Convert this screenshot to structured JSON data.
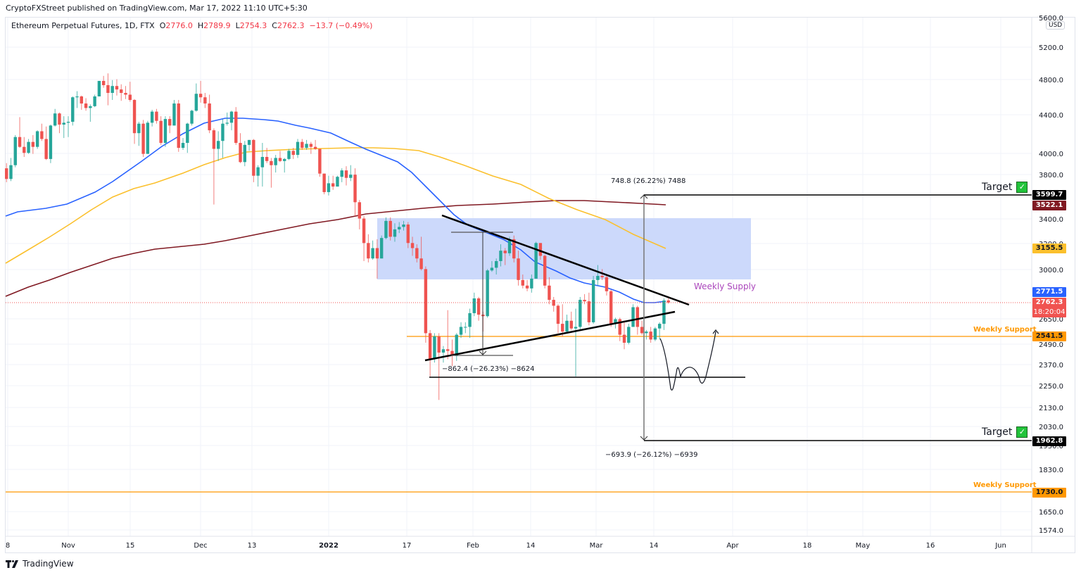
{
  "header": {
    "publisher_line": "CryptoFXStreet published on TradingView.com, Mar 17, 2022 11:10 UTC+5:30"
  },
  "legend": {
    "symbol": "Ethereum Perpetual Futures, 1D, FTX",
    "open_label": "O",
    "open": "2776.0",
    "high_label": "H",
    "high": "2789.9",
    "low_label": "L",
    "low": "2754.3",
    "close_label": "C",
    "close": "2762.3",
    "change": "−13.7 (−0.49%)"
  },
  "price_axis": {
    "currency": "USD",
    "ticks": [
      "5600.0",
      "5200.0",
      "4800.0",
      "4400.0",
      "4000.0",
      "3800.0",
      "3400.0",
      "3200.0",
      "3000.0",
      "2650.0",
      "2490.0",
      "2370.0",
      "2250.0",
      "2130.0",
      "2030.0",
      "1930.0",
      "1830.0",
      "1650.0",
      "1574.0"
    ]
  },
  "time_axis": {
    "ticks": [
      "8",
      "Nov",
      "15",
      "Dec",
      "13",
      "2022",
      "17",
      "Feb",
      "14",
      "Mar",
      "14",
      "Apr",
      "18",
      "May",
      "16",
      "Jun"
    ]
  },
  "price_tags": [
    {
      "value": "3599.7",
      "bg": "#000000",
      "color": "#ffffff"
    },
    {
      "value": "3522.1",
      "bg": "#801922",
      "color": "#ffffff"
    },
    {
      "value": "3155.5",
      "bg": "#fbc02d",
      "color": "#131722"
    },
    {
      "value": "2771.5",
      "bg": "#2962ff",
      "color": "#ffffff"
    },
    {
      "value": "2762.3",
      "bg": "#f05350",
      "color": "#ffffff",
      "sub": "18:20:04"
    },
    {
      "value": "2541.5",
      "bg": "#ff9800",
      "color": "#131722"
    },
    {
      "value": "1962.8",
      "bg": "#000000",
      "color": "#ffffff"
    },
    {
      "value": "1730.0",
      "bg": "#ff9800",
      "color": "#131722"
    }
  ],
  "annotations": {
    "measure_up": "748.8 (26.22%) 7488",
    "measure_down": "−693.9 (−26.12%) −6939",
    "measure_flag": "−862.4 (−26.23%) −8624",
    "target_upper": "Target",
    "target_lower": "Target",
    "weekly_supply": "Weekly Supply",
    "weekly_support_1": "Weekly Support",
    "weekly_support_2": "Weekly Support"
  },
  "footer": {
    "brand": "TradingView"
  },
  "colors": {
    "up": "#26a69a",
    "down": "#ef5350",
    "ma50": "#2962ff",
    "ma100": "#fbc02d",
    "ma200": "#801922",
    "supply": "#c9d7fb",
    "support": "#ff9800"
  },
  "chart_data": {
    "type": "candlestick",
    "title": "Ethereum Perpetual Futures, 1D, FTX",
    "xlabel": "",
    "ylabel": "USD",
    "y_scale": "log",
    "ylim": [
      1574,
      5600
    ],
    "x_range": [
      "2021-10-08",
      "2022-06-10"
    ],
    "last_close": 2762.3,
    "series": [
      {
        "name": "MA50 (blue)",
        "last": 2771.5
      },
      {
        "name": "MA100 (yellow)",
        "last": 3155.5
      },
      {
        "name": "MA200 (dark red)",
        "last": 3522.1
      }
    ],
    "levels": [
      {
        "name": "Target upper",
        "value": 3599.7
      },
      {
        "name": "Weekly Supply zone",
        "from": 2930,
        "to": 3380
      },
      {
        "name": "Weekly Support",
        "value": 2541.5
      },
      {
        "name": "Range low",
        "value": 2300
      },
      {
        "name": "Target lower",
        "value": 1962.8
      },
      {
        "name": "Weekly Support",
        "value": 1730.0
      }
    ],
    "ohlc": [
      [
        "10-08",
        3600,
        3660,
        3540,
        3560
      ],
      [
        "10-09",
        3560,
        3620,
        3530,
        3580
      ],
      [
        "10-10",
        3580,
        3620,
        3420,
        3430
      ],
      [
        "10-11",
        3430,
        3560,
        3400,
        3540
      ],
      [
        "10-12",
        3540,
        3560,
        3450,
        3490
      ],
      [
        "10-13",
        3490,
        3620,
        3460,
        3610
      ],
      [
        "10-14",
        3610,
        3880,
        3590,
        3860
      ],
      [
        "10-15",
        3860,
        3900,
        3770,
        3870
      ],
      [
        "10-16",
        3870,
        3940,
        3820,
        3830
      ],
      [
        "10-17",
        3830,
        3900,
        3740,
        3850
      ],
      [
        "10-18",
        3850,
        3900,
        3720,
        3750
      ],
      [
        "10-19",
        3750,
        3950,
        3730,
        3880
      ],
      [
        "10-20",
        3880,
        4180,
        3860,
        4160
      ],
      [
        "10-21",
        4160,
        4370,
        4050,
        4060
      ],
      [
        "10-22",
        4060,
        4160,
        3960,
        4000
      ],
      [
        "10-23",
        4000,
        4140,
        3990,
        4110
      ],
      [
        "10-24",
        4110,
        4180,
        3990,
        4060
      ],
      [
        "10-25",
        4060,
        4230,
        4040,
        4220
      ],
      [
        "10-26",
        4220,
        4300,
        4120,
        4140
      ],
      [
        "10-27",
        4140,
        4270,
        3930,
        3940
      ],
      [
        "10-28",
        3940,
        4290,
        3900,
        4280
      ],
      [
        "10-29",
        4280,
        4460,
        4270,
        4410
      ],
      [
        "10-30",
        4410,
        4420,
        4200,
        4290
      ],
      [
        "10-31",
        4290,
        4380,
        4150,
        4310
      ],
      [
        "11-01",
        4310,
        4380,
        4160,
        4320
      ],
      [
        "11-02",
        4320,
        4600,
        4280,
        4590
      ],
      [
        "11-03",
        4590,
        4660,
        4470,
        4600
      ],
      [
        "11-04",
        4600,
        4610,
        4450,
        4520
      ],
      [
        "11-05",
        4520,
        4580,
        4440,
        4470
      ],
      [
        "11-06",
        4470,
        4510,
        4320,
        4490
      ],
      [
        "11-07",
        4490,
        4620,
        4480,
        4600
      ],
      [
        "11-08",
        4600,
        4780,
        4600,
        4780
      ],
      [
        "11-09",
        4780,
        4840,
        4700,
        4730
      ],
      [
        "11-10",
        4730,
        4870,
        4500,
        4640
      ],
      [
        "11-11",
        4640,
        4790,
        4560,
        4720
      ],
      [
        "11-12",
        4720,
        4800,
        4610,
        4680
      ],
      [
        "11-13",
        4680,
        4740,
        4550,
        4640
      ],
      [
        "11-14",
        4640,
        4720,
        4570,
        4620
      ],
      [
        "11-15",
        4620,
        4770,
        4540,
        4560
      ],
      [
        "11-16",
        4560,
        4570,
        4090,
        4200
      ],
      [
        "11-17",
        4200,
        4320,
        4070,
        4300
      ],
      [
        "11-18",
        4300,
        4340,
        3960,
        3990
      ],
      [
        "11-19",
        3990,
        4330,
        3990,
        4310
      ],
      [
        "11-20",
        4310,
        4450,
        4270,
        4430
      ],
      [
        "11-21",
        4430,
        4460,
        4300,
        4330
      ],
      [
        "11-22",
        4330,
        4380,
        4080,
        4100
      ],
      [
        "11-23",
        4100,
        4380,
        4060,
        4350
      ],
      [
        "11-24",
        4350,
        4380,
        4200,
        4280
      ],
      [
        "11-25",
        4280,
        4560,
        4280,
        4520
      ],
      [
        "11-26",
        4520,
        4560,
        4010,
        4050
      ],
      [
        "11-27",
        4050,
        4150,
        4030,
        4100
      ],
      [
        "11-28",
        4100,
        4310,
        4000,
        4300
      ],
      [
        "11-29",
        4300,
        4450,
        4280,
        4440
      ],
      [
        "11-30",
        4440,
        4750,
        4430,
        4630
      ],
      [
        "12-01",
        4630,
        4780,
        4530,
        4590
      ],
      [
        "12-02",
        4590,
        4640,
        4470,
        4520
      ],
      [
        "12-03",
        4520,
        4620,
        4200,
        4230
      ],
      [
        "12-04",
        4230,
        4250,
        3520,
        4040
      ],
      [
        "12-05",
        4040,
        4220,
        3920,
        4120
      ],
      [
        "12-06",
        4120,
        4350,
        3950,
        4300
      ],
      [
        "12-07",
        4300,
        4420,
        4280,
        4310
      ],
      [
        "12-08",
        4310,
        4440,
        4230,
        4430
      ],
      [
        "12-09",
        4430,
        4480,
        4080,
        4100
      ],
      [
        "12-10",
        4100,
        4200,
        3900,
        3910
      ],
      [
        "12-11",
        3910,
        4120,
        3870,
        4080
      ],
      [
        "12-12",
        4080,
        4130,
        4020,
        4130
      ],
      [
        "12-13",
        4130,
        4140,
        3720,
        3780
      ],
      [
        "12-14",
        3780,
        3880,
        3680,
        3860
      ],
      [
        "12-15",
        3860,
        4100,
        3680,
        3960
      ],
      [
        "12-16",
        3960,
        4050,
        3900,
        3920
      ],
      [
        "12-17",
        3920,
        3950,
        3670,
        3880
      ],
      [
        "12-18",
        3880,
        3980,
        3810,
        3950
      ],
      [
        "12-19",
        3950,
        4020,
        3910,
        3920
      ],
      [
        "12-20",
        3920,
        3950,
        3810,
        3940
      ],
      [
        "12-21",
        3940,
        4040,
        3930,
        4020
      ],
      [
        "12-22",
        4020,
        4050,
        3940,
        3980
      ],
      [
        "12-23",
        3980,
        4140,
        3950,
        4110
      ],
      [
        "12-24",
        4110,
        4140,
        4030,
        4050
      ],
      [
        "12-25",
        4050,
        4130,
        4030,
        4090
      ],
      [
        "12-26",
        4090,
        4110,
        3990,
        4060
      ],
      [
        "12-27",
        4060,
        4130,
        4030,
        4040
      ],
      [
        "12-28",
        4040,
        4040,
        3770,
        3800
      ],
      [
        "12-29",
        3800,
        3800,
        3610,
        3630
      ],
      [
        "12-30",
        3630,
        3780,
        3600,
        3710
      ],
      [
        "12-31",
        3710,
        3780,
        3650,
        3680
      ],
      [
        "01-01",
        3680,
        3780,
        3680,
        3770
      ],
      [
        "01-02",
        3770,
        3850,
        3720,
        3830
      ],
      [
        "01-03",
        3830,
        3870,
        3690,
        3760
      ],
      [
        "01-04",
        3760,
        3880,
        3730,
        3790
      ],
      [
        "01-05",
        3790,
        3850,
        3420,
        3540
      ],
      [
        "01-06",
        3540,
        3560,
        3310,
        3400
      ],
      [
        "01-07",
        3400,
        3420,
        3060,
        3200
      ],
      [
        "01-08",
        3200,
        3270,
        3050,
        3080
      ],
      [
        "01-09",
        3080,
        3220,
        3070,
        3160
      ],
      [
        "01-10",
        3160,
        3230,
        2930,
        3080
      ],
      [
        "01-11",
        3080,
        3260,
        3080,
        3240
      ],
      [
        "01-12",
        3240,
        3410,
        3230,
        3380
      ],
      [
        "01-13",
        3380,
        3410,
        3220,
        3250
      ],
      [
        "01-14",
        3250,
        3360,
        3210,
        3310
      ],
      [
        "01-15",
        3310,
        3370,
        3280,
        3330
      ],
      [
        "01-16",
        3330,
        3380,
        3300,
        3350
      ],
      [
        "01-17",
        3350,
        3370,
        3160,
        3200
      ],
      [
        "01-18",
        3200,
        3250,
        3100,
        3160
      ],
      [
        "01-19",
        3160,
        3190,
        3050,
        3080
      ],
      [
        "01-20",
        3080,
        3250,
        2990,
        3000
      ],
      [
        "01-21",
        3000,
        3020,
        2500,
        2560
      ],
      [
        "01-22",
        2560,
        2580,
        2300,
        2400
      ],
      [
        "01-23",
        2400,
        2560,
        2380,
        2540
      ],
      [
        "01-24",
        2540,
        2560,
        2170,
        2440
      ],
      [
        "01-25",
        2440,
        2480,
        2380,
        2460
      ],
      [
        "01-26",
        2460,
        2710,
        2400,
        2450
      ],
      [
        "01-27",
        2450,
        2520,
        2360,
        2420
      ],
      [
        "01-28",
        2420,
        2560,
        2390,
        2550
      ],
      [
        "01-29",
        2550,
        2630,
        2530,
        2600
      ],
      [
        "01-30",
        2600,
        2630,
        2560,
        2600
      ],
      [
        "01-31",
        2600,
        2720,
        2530,
        2690
      ],
      [
        "02-01",
        2690,
        2830,
        2670,
        2790
      ],
      [
        "02-02",
        2790,
        2800,
        2640,
        2680
      ],
      [
        "02-03",
        2680,
        2700,
        2570,
        2670
      ],
      [
        "02-04",
        2670,
        3000,
        2660,
        2990
      ],
      [
        "02-05",
        2990,
        3060,
        2980,
        3010
      ],
      [
        "02-06",
        3010,
        3080,
        2960,
        3060
      ],
      [
        "02-07",
        3060,
        3190,
        3020,
        3140
      ],
      [
        "02-08",
        3140,
        3160,
        3030,
        3120
      ],
      [
        "02-09",
        3120,
        3250,
        3100,
        3230
      ],
      [
        "02-10",
        3230,
        3260,
        3050,
        3080
      ],
      [
        "02-11",
        3080,
        3140,
        2880,
        2920
      ],
      [
        "02-12",
        2920,
        2960,
        2860,
        2880
      ],
      [
        "02-13",
        2880,
        2920,
        2840,
        2860
      ],
      [
        "02-14",
        2860,
        2960,
        2830,
        2930
      ],
      [
        "02-15",
        2930,
        3210,
        2930,
        3200
      ],
      [
        "02-16",
        3200,
        3200,
        3070,
        3100
      ],
      [
        "02-17",
        3100,
        3110,
        2860,
        2880
      ],
      [
        "02-18",
        2880,
        2940,
        2750,
        2780
      ],
      [
        "02-19",
        2780,
        2800,
        2700,
        2740
      ],
      [
        "02-20",
        2740,
        2750,
        2560,
        2620
      ],
      [
        "02-21",
        2620,
        2750,
        2540,
        2570
      ],
      [
        "02-22",
        2570,
        2680,
        2560,
        2640
      ],
      [
        "02-23",
        2640,
        2700,
        2580,
        2590
      ],
      [
        "02-24",
        2590,
        2720,
        2300,
        2600
      ],
      [
        "02-25",
        2600,
        2800,
        2580,
        2780
      ],
      [
        "02-26",
        2780,
        2820,
        2750,
        2770
      ],
      [
        "02-27",
        2770,
        2830,
        2610,
        2630
      ],
      [
        "02-28",
        2630,
        2950,
        2620,
        2920
      ],
      [
        "03-01",
        2920,
        3030,
        2880,
        2950
      ],
      [
        "03-02",
        2950,
        3000,
        2920,
        2940
      ],
      [
        "03-03",
        2940,
        2960,
        2810,
        2840
      ],
      [
        "03-04",
        2840,
        2850,
        2600,
        2620
      ],
      [
        "03-05",
        2620,
        2660,
        2590,
        2650
      ],
      [
        "03-06",
        2650,
        2660,
        2510,
        2550
      ],
      [
        "03-07",
        2550,
        2640,
        2460,
        2500
      ],
      [
        "03-08",
        2500,
        2620,
        2490,
        2600
      ],
      [
        "03-09",
        2600,
        2750,
        2600,
        2730
      ],
      [
        "03-10",
        2730,
        2740,
        2550,
        2600
      ],
      [
        "03-11",
        2600,
        2640,
        2550,
        2560
      ],
      [
        "03-12",
        2560,
        2580,
        2520,
        2570
      ],
      [
        "03-13",
        2570,
        2600,
        2500,
        2520
      ],
      [
        "03-14",
        2520,
        2600,
        2510,
        2590
      ],
      [
        "03-15",
        2590,
        2630,
        2520,
        2620
      ],
      [
        "03-16",
        2620,
        2790,
        2580,
        2776
      ],
      [
        "03-17",
        2776,
        2789.9,
        2754.3,
        2762.3
      ]
    ]
  }
}
